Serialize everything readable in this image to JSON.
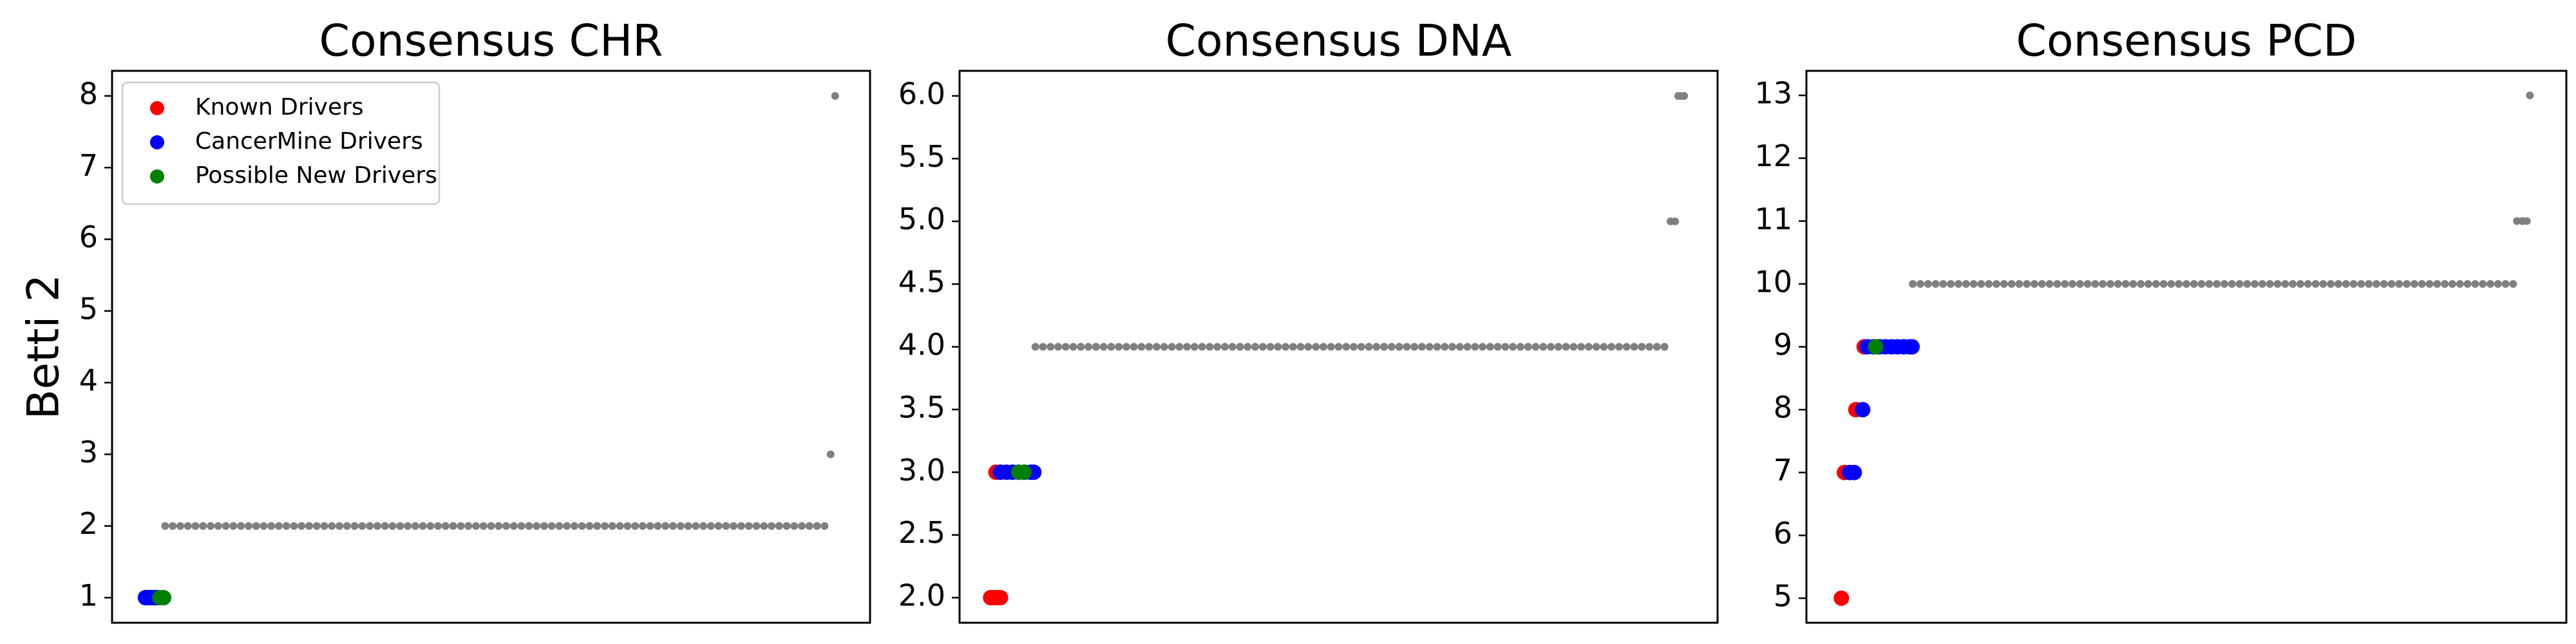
{
  "chart_data": [
    {
      "type": "scatter",
      "title": "Consensus CHR",
      "ylabel": "Betti 2",
      "legend": "upper left",
      "xlim": [
        0,
        100
      ],
      "ylim": [
        0.65,
        8.35
      ],
      "yticks": [
        1,
        2,
        3,
        4,
        5,
        6,
        7,
        8
      ],
      "series": [
        {
          "name": "Known Drivers",
          "color": "#ff0000",
          "x": [
            4.6
          ],
          "values": [
            1
          ]
        },
        {
          "name": "CancerMine Drivers",
          "color": "#0000ff",
          "x": [
            4.4,
            4.8,
            5.2,
            5.6,
            5.9
          ],
          "values": [
            1,
            1,
            1,
            1,
            1
          ]
        },
        {
          "name": "Possible New Drivers",
          "color": "#008000",
          "x": [
            6.3,
            6.8
          ],
          "values": [
            1,
            1
          ]
        },
        {
          "color": "#808080",
          "x": [
            7,
            8,
            9,
            10,
            11,
            12,
            13,
            14,
            15,
            16,
            17,
            18,
            19,
            20,
            21,
            22,
            23,
            24,
            25,
            26,
            27,
            28,
            29,
            30,
            31,
            32,
            33,
            34,
            35,
            36,
            37,
            38,
            39,
            40,
            41,
            42,
            43,
            44,
            45,
            46,
            47,
            48,
            49,
            50,
            51,
            52,
            53,
            54,
            55,
            56,
            57,
            58,
            59,
            60,
            61,
            62,
            63,
            64,
            65,
            66,
            67,
            68,
            69,
            70,
            71,
            72,
            73,
            74,
            75,
            76,
            77,
            78,
            79,
            80,
            81,
            82,
            83,
            84,
            85,
            86,
            87,
            88,
            89,
            90,
            91,
            92,
            93,
            94,
            94.8,
            95.4
          ],
          "values": [
            2,
            2,
            2,
            2,
            2,
            2,
            2,
            2,
            2,
            2,
            2,
            2,
            2,
            2,
            2,
            2,
            2,
            2,
            2,
            2,
            2,
            2,
            2,
            2,
            2,
            2,
            2,
            2,
            2,
            2,
            2,
            2,
            2,
            2,
            2,
            2,
            2,
            2,
            2,
            2,
            2,
            2,
            2,
            2,
            2,
            2,
            2,
            2,
            2,
            2,
            2,
            2,
            2,
            2,
            2,
            2,
            2,
            2,
            2,
            2,
            2,
            2,
            2,
            2,
            2,
            2,
            2,
            2,
            2,
            2,
            2,
            2,
            2,
            2,
            2,
            2,
            2,
            2,
            2,
            2,
            2,
            2,
            2,
            2,
            2,
            2,
            2,
            2,
            3,
            8
          ]
        }
      ]
    },
    {
      "type": "scatter",
      "title": "Consensus DNA",
      "xlim": [
        0,
        100
      ],
      "ylim": [
        1.8,
        6.2
      ],
      "yticks": [
        {
          "value": 2,
          "label": "2.0"
        },
        {
          "value": 2.5,
          "label": "2.5"
        },
        {
          "value": 3,
          "label": "3.0"
        },
        {
          "value": 3.5,
          "label": "3.5"
        },
        {
          "value": 4,
          "label": "4.0"
        },
        {
          "value": 4.5,
          "label": "4.5"
        },
        {
          "value": 5,
          "label": "5.0"
        },
        {
          "value": 5.5,
          "label": "5.5"
        },
        {
          "value": 6,
          "label": "6.0"
        }
      ],
      "series": [
        {
          "name": "Known Drivers",
          "color": "#ff0000",
          "x": [
            4.1,
            4.6,
            5.1,
            5.4,
            4.8
          ],
          "values": [
            2,
            2,
            2,
            2,
            3
          ]
        },
        {
          "name": "CancerMine Drivers",
          "color": "#0000ff",
          "x": [
            5.4,
            6.2,
            7.0,
            7.8,
            8.6,
            9.4,
            9.8
          ],
          "values": [
            3,
            3,
            3,
            3,
            3,
            3,
            3
          ]
        },
        {
          "name": "Possible New Drivers",
          "color": "#008000",
          "x": [
            7.8,
            8.5
          ],
          "values": [
            3,
            3
          ]
        },
        {
          "color": "#808080",
          "x": [
            10,
            11,
            12,
            13,
            14,
            15,
            16,
            17,
            18,
            19,
            20,
            21,
            22,
            23,
            24,
            25,
            26,
            27,
            28,
            29,
            30,
            31,
            32,
            33,
            34,
            35,
            36,
            37,
            38,
            39,
            40,
            41,
            42,
            43,
            44,
            45,
            46,
            47,
            48,
            49,
            50,
            51,
            52,
            53,
            54,
            55,
            56,
            57,
            58,
            59,
            60,
            61,
            62,
            63,
            64,
            65,
            66,
            67,
            68,
            69,
            70,
            71,
            72,
            73,
            74,
            75,
            76,
            77,
            78,
            79,
            80,
            81,
            82,
            83,
            84,
            85,
            86,
            87,
            88,
            89,
            90,
            91,
            92,
            93,
            93.8,
            94.4,
            94.8,
            95.2,
            95.6
          ],
          "values": [
            4,
            4,
            4,
            4,
            4,
            4,
            4,
            4,
            4,
            4,
            4,
            4,
            4,
            4,
            4,
            4,
            4,
            4,
            4,
            4,
            4,
            4,
            4,
            4,
            4,
            4,
            4,
            4,
            4,
            4,
            4,
            4,
            4,
            4,
            4,
            4,
            4,
            4,
            4,
            4,
            4,
            4,
            4,
            4,
            4,
            4,
            4,
            4,
            4,
            4,
            4,
            4,
            4,
            4,
            4,
            4,
            4,
            4,
            4,
            4,
            4,
            4,
            4,
            4,
            4,
            4,
            4,
            4,
            4,
            4,
            4,
            4,
            4,
            4,
            4,
            4,
            4,
            4,
            4,
            4,
            4,
            4,
            4,
            4,
            5,
            5,
            6,
            6,
            6
          ]
        }
      ]
    },
    {
      "type": "scatter",
      "title": "Consensus PCD",
      "xlim": [
        0,
        100
      ],
      "ylim": [
        4.61,
        13.39
      ],
      "yticks": [
        5,
        6,
        7,
        8,
        9,
        10,
        11,
        12,
        13
      ],
      "series": [
        {
          "name": "Known Drivers",
          "color": "#ff0000",
          "x": [
            4.6,
            5.0,
            6.5,
            7.6
          ],
          "values": [
            5,
            7,
            8,
            9
          ]
        },
        {
          "name": "CancerMine Drivers",
          "color": "#0000ff",
          "x": [
            5.7,
            6.3,
            7.4,
            8.0,
            8.8,
            9.6,
            10.4,
            11.2,
            12.0,
            12.8,
            13.6,
            13.9
          ],
          "values": [
            7,
            7,
            8,
            9,
            9,
            9,
            9,
            9,
            9,
            9,
            9,
            9
          ]
        },
        {
          "name": "Possible New Drivers",
          "color": "#008000",
          "x": [
            9.1
          ],
          "values": [
            9
          ]
        },
        {
          "color": "#808080",
          "x": [
            14,
            15,
            16,
            17,
            18,
            19,
            20,
            21,
            22,
            23,
            24,
            25,
            26,
            27,
            28,
            29,
            30,
            31,
            32,
            33,
            34,
            35,
            36,
            37,
            38,
            39,
            40,
            41,
            42,
            43,
            44,
            45,
            46,
            47,
            48,
            49,
            50,
            51,
            52,
            53,
            54,
            55,
            56,
            57,
            58,
            59,
            60,
            61,
            62,
            63,
            64,
            65,
            66,
            67,
            68,
            69,
            70,
            71,
            72,
            73,
            74,
            75,
            76,
            77,
            78,
            79,
            80,
            81,
            82,
            83,
            84,
            85,
            86,
            87,
            88,
            89,
            90,
            91,
            92,
            93,
            93.5,
            94.2,
            94.8,
            95.2
          ],
          "values": [
            10,
            10,
            10,
            10,
            10,
            10,
            10,
            10,
            10,
            10,
            10,
            10,
            10,
            10,
            10,
            10,
            10,
            10,
            10,
            10,
            10,
            10,
            10,
            10,
            10,
            10,
            10,
            10,
            10,
            10,
            10,
            10,
            10,
            10,
            10,
            10,
            10,
            10,
            10,
            10,
            10,
            10,
            10,
            10,
            10,
            10,
            10,
            10,
            10,
            10,
            10,
            10,
            10,
            10,
            10,
            10,
            10,
            10,
            10,
            10,
            10,
            10,
            10,
            10,
            10,
            10,
            10,
            10,
            10,
            10,
            10,
            10,
            10,
            10,
            10,
            10,
            10,
            10,
            10,
            10,
            11,
            11,
            11,
            13
          ]
        }
      ]
    }
  ]
}
